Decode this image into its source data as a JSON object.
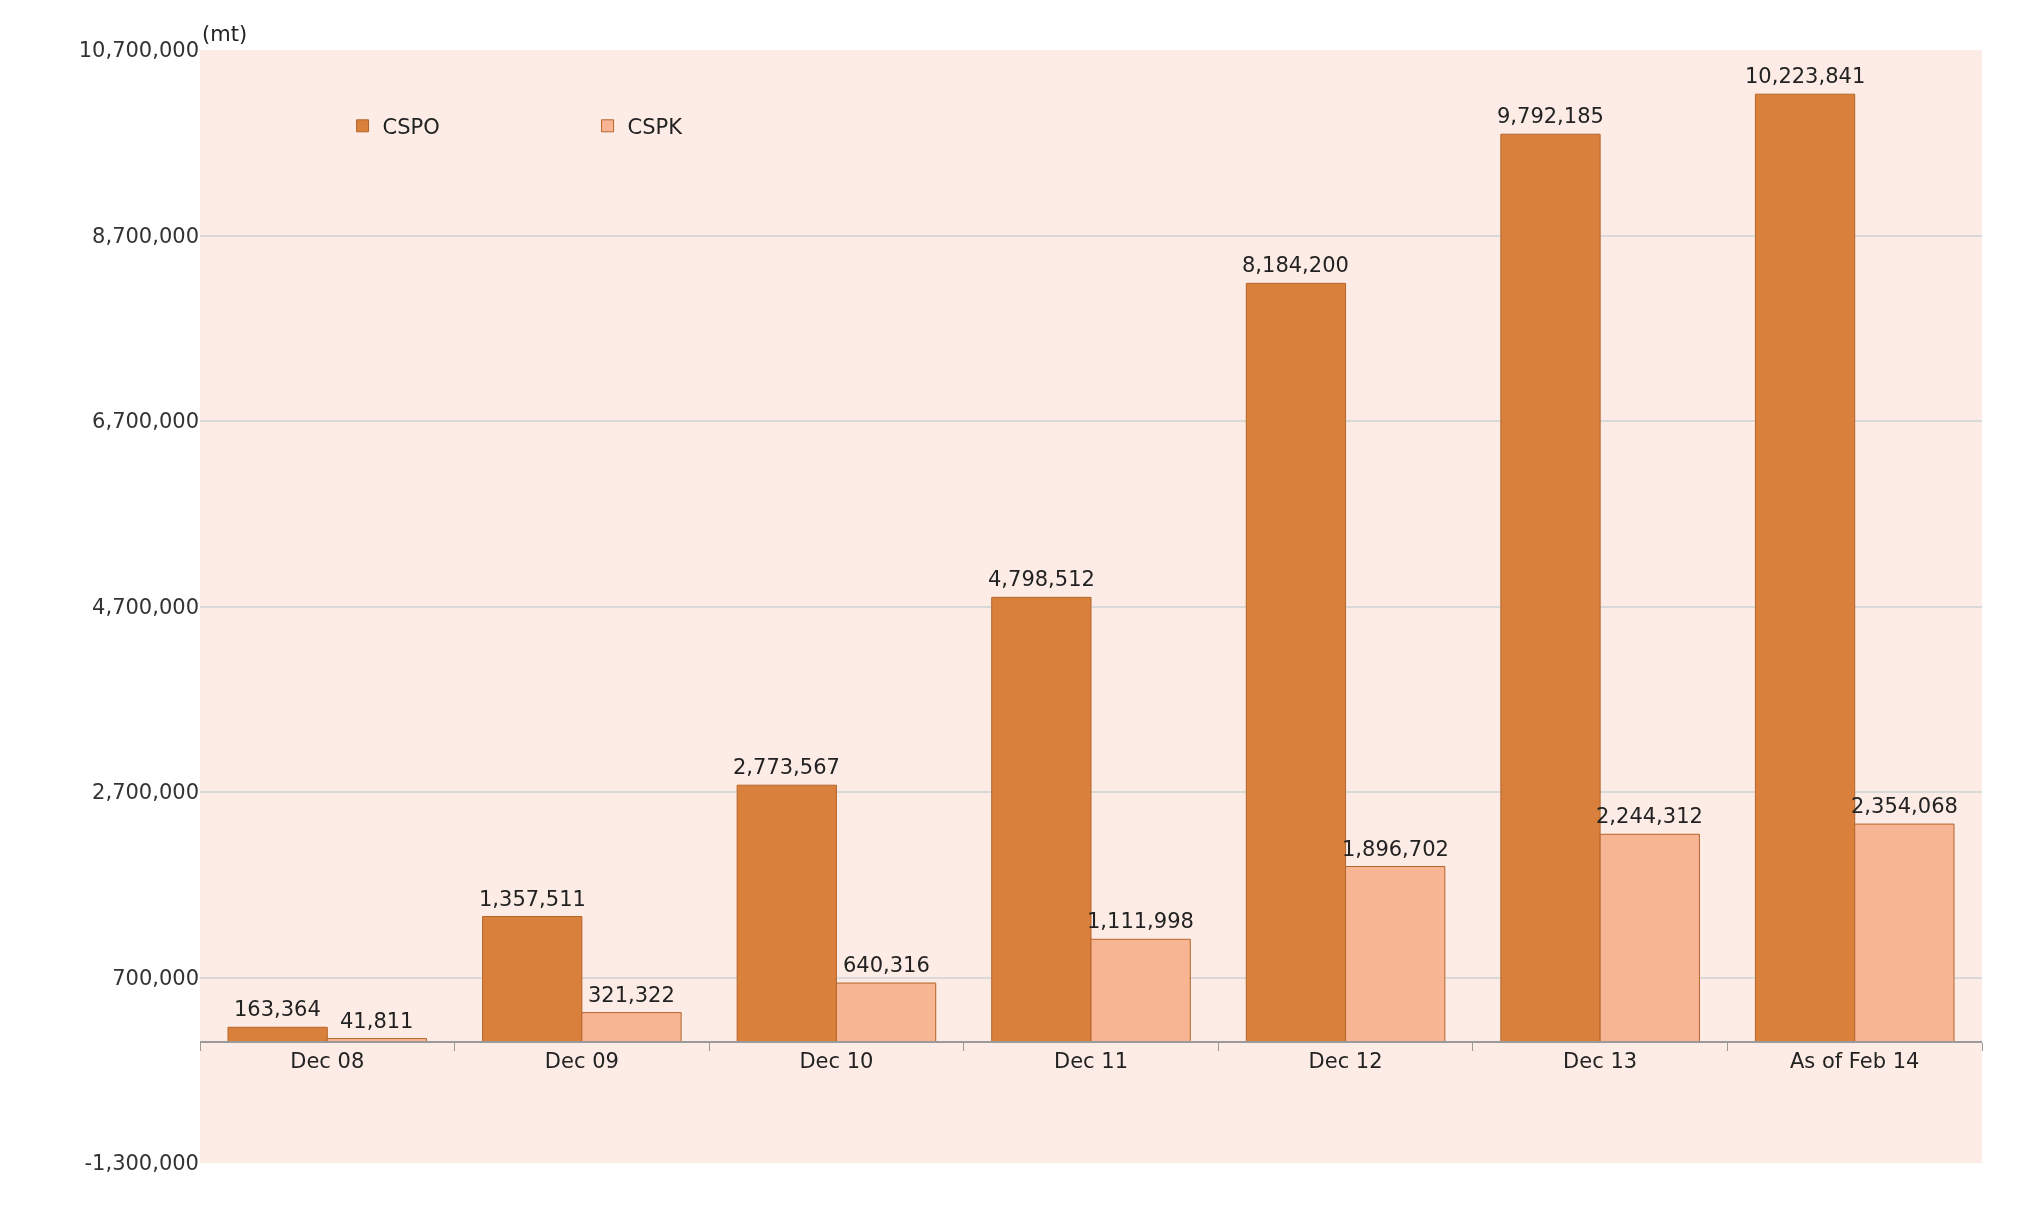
{
  "chart_data": {
    "type": "bar",
    "ylabel": "(mt)",
    "categories": [
      "Dec 08",
      "Dec 09",
      "Dec 10",
      "Dec 11",
      "Dec 12",
      "Dec 13",
      "As of Feb 14"
    ],
    "series": [
      {
        "name": "CSPO",
        "color": "#d9803c",
        "values": [
          163364,
          1357511,
          2773567,
          4798512,
          8184200,
          9792185,
          10223841
        ],
        "value_labels": [
          "163,364",
          "1,357,511",
          "2,773,567",
          "4,798,512",
          "8,184,200",
          "9,792,185",
          "10,223,841"
        ]
      },
      {
        "name": "CSPK",
        "color": "#f7b594",
        "values": [
          41811,
          321322,
          640316,
          1111998,
          1896702,
          2244312,
          2354068
        ],
        "value_labels": [
          "41,811",
          "321,322",
          "640,316",
          "1,111,998",
          "1,896,702",
          "2,244,312",
          "2,354,068"
        ]
      }
    ],
    "ylim": [
      -1300000,
      10700000
    ],
    "yticks": [
      {
        "value": -1300000,
        "label": "-1,300,000"
      },
      {
        "value": 700000,
        "label": "700,000"
      },
      {
        "value": 2700000,
        "label": "2,700,000"
      },
      {
        "value": 4700000,
        "label": "4,700,000"
      },
      {
        "value": 6700000,
        "label": "6,700,000"
      },
      {
        "value": 8700000,
        "label": "8,700,000"
      },
      {
        "value": 10700000,
        "label": "10,700,000"
      }
    ],
    "grid": "y",
    "legend": "top left"
  }
}
